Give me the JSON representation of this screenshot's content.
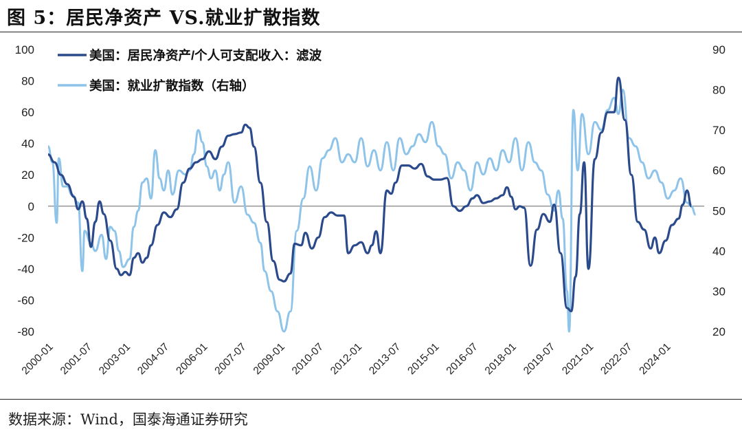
{
  "figure": {
    "title": "图 5：居民净资产 VS.就业扩散指数",
    "source": "数据来源：Wind，国泰海通证券研究"
  },
  "chart_data": {
    "type": "line",
    "x_ticks": [
      "2000-01",
      "2001-07",
      "2003-01",
      "2004-07",
      "2006-01",
      "2007-07",
      "2009-01",
      "2010-07",
      "2012-01",
      "2013-07",
      "2015-01",
      "2016-07",
      "2018-01",
      "2019-07",
      "2021-01",
      "2022-07",
      "2024-01"
    ],
    "x_range": [
      "2000-01",
      "2025-07"
    ],
    "ylim_left": [
      -80,
      100
    ],
    "yticks_left": [
      "100",
      "80",
      "60",
      "40",
      "20",
      "0",
      "-20",
      "-40",
      "-60",
      "-80"
    ],
    "ylim_right": [
      20,
      90
    ],
    "yticks_right": [
      "90",
      "80",
      "70",
      "60",
      "50",
      "40",
      "30",
      "20"
    ],
    "grid": false,
    "legend_position": "top-left",
    "colors": {
      "series1": "#2b4a8b",
      "series2": "#8ec3ea"
    },
    "series": [
      {
        "name": "美国：居民净资产/个人可支配收入：滤波",
        "axis": "left",
        "points": [
          [
            "2000-01",
            33
          ],
          [
            "2000-04",
            28
          ],
          [
            "2000-07",
            20
          ],
          [
            "2000-10",
            14
          ],
          [
            "2001-01",
            6
          ],
          [
            "2001-03",
            -2
          ],
          [
            "2001-05",
            3
          ],
          [
            "2001-07",
            -8
          ],
          [
            "2001-09",
            -26
          ],
          [
            "2001-11",
            -10
          ],
          [
            "2002-01",
            3
          ],
          [
            "2002-03",
            -5
          ],
          [
            "2002-06",
            -22
          ],
          [
            "2002-09",
            -40
          ],
          [
            "2002-11",
            -44
          ],
          [
            "2003-01",
            -42
          ],
          [
            "2003-03",
            -44
          ],
          [
            "2003-05",
            -33
          ],
          [
            "2003-07",
            -30
          ],
          [
            "2003-09",
            -36
          ],
          [
            "2003-11",
            -33
          ],
          [
            "2004-01",
            -25
          ],
          [
            "2004-04",
            -12
          ],
          [
            "2004-07",
            -4
          ],
          [
            "2004-10",
            -7
          ],
          [
            "2005-01",
            -2
          ],
          [
            "2005-04",
            15
          ],
          [
            "2005-07",
            24
          ],
          [
            "2005-10",
            28
          ],
          [
            "2006-01",
            30
          ],
          [
            "2006-04",
            35
          ],
          [
            "2006-07",
            30
          ],
          [
            "2006-10",
            38
          ],
          [
            "2007-01",
            45
          ],
          [
            "2007-04",
            46
          ],
          [
            "2007-07",
            47
          ],
          [
            "2007-09",
            52
          ],
          [
            "2007-11",
            50
          ],
          [
            "2008-01",
            38
          ],
          [
            "2008-04",
            15
          ],
          [
            "2008-07",
            -10
          ],
          [
            "2008-10",
            -35
          ],
          [
            "2009-01",
            -47
          ],
          [
            "2009-03",
            -48
          ],
          [
            "2009-06",
            -43
          ],
          [
            "2009-08",
            -24
          ],
          [
            "2009-11",
            -25
          ],
          [
            "2010-01",
            -17
          ],
          [
            "2010-04",
            -27
          ],
          [
            "2010-07",
            -20
          ],
          [
            "2010-10",
            -7
          ],
          [
            "2011-01",
            -4
          ],
          [
            "2011-04",
            -6
          ],
          [
            "2011-07",
            -6
          ],
          [
            "2011-09",
            -30
          ],
          [
            "2011-12",
            -25
          ],
          [
            "2012-03",
            -23
          ],
          [
            "2012-06",
            -30
          ],
          [
            "2012-08",
            -25
          ],
          [
            "2012-10",
            -16
          ],
          [
            "2012-12",
            -30
          ],
          [
            "2013-03",
            10
          ],
          [
            "2013-05",
            8
          ],
          [
            "2013-07",
            15
          ],
          [
            "2013-10",
            26
          ],
          [
            "2014-01",
            26
          ],
          [
            "2014-04",
            24
          ],
          [
            "2014-07",
            27
          ],
          [
            "2014-10",
            19
          ],
          [
            "2015-01",
            17
          ],
          [
            "2015-04",
            17
          ],
          [
            "2015-07",
            18
          ],
          [
            "2015-10",
            0
          ],
          [
            "2016-01",
            -3
          ],
          [
            "2016-04",
            0
          ],
          [
            "2016-07",
            5
          ],
          [
            "2016-09",
            7
          ],
          [
            "2016-12",
            2
          ],
          [
            "2017-03",
            3
          ],
          [
            "2017-06",
            5
          ],
          [
            "2017-09",
            7
          ],
          [
            "2017-11",
            12
          ],
          [
            "2018-01",
            6
          ],
          [
            "2018-03",
            -2
          ],
          [
            "2018-05",
            0
          ],
          [
            "2018-07",
            -1
          ],
          [
            "2018-10",
            -38
          ],
          [
            "2019-01",
            -15
          ],
          [
            "2019-04",
            -5
          ],
          [
            "2019-07",
            -10
          ],
          [
            "2019-09",
            1
          ],
          [
            "2019-12",
            -30
          ],
          [
            "2020-03",
            -65
          ],
          [
            "2020-05",
            -67
          ],
          [
            "2020-07",
            -45
          ],
          [
            "2020-09",
            -5
          ],
          [
            "2020-11",
            28
          ],
          [
            "2021-01",
            -40
          ],
          [
            "2021-04",
            30
          ],
          [
            "2021-07",
            47
          ],
          [
            "2021-10",
            60
          ],
          [
            "2022-01",
            60
          ],
          [
            "2022-03",
            82
          ],
          [
            "2022-06",
            55
          ],
          [
            "2022-09",
            20
          ],
          [
            "2022-12",
            -10
          ],
          [
            "2023-03",
            -15
          ],
          [
            "2023-06",
            -27
          ],
          [
            "2023-08",
            -20
          ],
          [
            "2023-10",
            -30
          ],
          [
            "2024-01",
            -22
          ],
          [
            "2024-04",
            -12
          ],
          [
            "2024-07",
            -8
          ],
          [
            "2024-09",
            1
          ],
          [
            "2024-11",
            10
          ],
          [
            "2025-01",
            0
          ]
        ]
      },
      {
        "name": "美国：就业扩散指数（右轴）",
        "axis": "right",
        "points": [
          [
            "2000-01",
            66
          ],
          [
            "2000-03",
            62
          ],
          [
            "2000-05",
            47
          ],
          [
            "2000-06",
            63
          ],
          [
            "2000-08",
            56
          ],
          [
            "2000-10",
            56
          ],
          [
            "2000-12",
            54
          ],
          [
            "2001-03",
            52
          ],
          [
            "2001-05",
            35
          ],
          [
            "2001-06",
            45
          ],
          [
            "2001-09",
            42
          ],
          [
            "2001-11",
            40
          ],
          [
            "2002-02",
            44
          ],
          [
            "2002-04",
            38
          ],
          [
            "2002-06",
            46
          ],
          [
            "2002-08",
            45
          ],
          [
            "2002-10",
            40
          ],
          [
            "2002-12",
            36
          ],
          [
            "2003-03",
            38
          ],
          [
            "2003-05",
            46
          ],
          [
            "2003-07",
            50
          ],
          [
            "2003-09",
            57
          ],
          [
            "2003-11",
            58
          ],
          [
            "2004-01",
            53
          ],
          [
            "2004-03",
            65
          ],
          [
            "2004-05",
            58
          ],
          [
            "2004-07",
            55
          ],
          [
            "2004-09",
            60
          ],
          [
            "2004-11",
            54
          ],
          [
            "2005-02",
            60
          ],
          [
            "2005-05",
            59
          ],
          [
            "2005-07",
            60
          ],
          [
            "2005-09",
            64
          ],
          [
            "2005-11",
            70
          ],
          [
            "2006-01",
            67
          ],
          [
            "2006-03",
            61
          ],
          [
            "2006-05",
            58
          ],
          [
            "2006-07",
            60
          ],
          [
            "2006-09",
            55
          ],
          [
            "2006-11",
            59
          ],
          [
            "2007-01",
            62
          ],
          [
            "2007-04",
            52
          ],
          [
            "2007-07",
            56
          ],
          [
            "2007-10",
            49
          ],
          [
            "2008-01",
            47
          ],
          [
            "2008-04",
            42
          ],
          [
            "2008-06",
            35
          ],
          [
            "2008-09",
            30
          ],
          [
            "2008-12",
            25
          ],
          [
            "2009-03",
            20
          ],
          [
            "2009-06",
            25
          ],
          [
            "2009-09",
            45
          ],
          [
            "2009-12",
            53
          ],
          [
            "2010-03",
            61
          ],
          [
            "2010-06",
            55
          ],
          [
            "2010-09",
            63
          ],
          [
            "2010-12",
            65
          ],
          [
            "2011-03",
            68
          ],
          [
            "2011-06",
            62
          ],
          [
            "2011-09",
            64
          ],
          [
            "2011-12",
            62
          ],
          [
            "2012-03",
            68
          ],
          [
            "2012-06",
            61
          ],
          [
            "2012-09",
            65
          ],
          [
            "2012-12",
            60
          ],
          [
            "2013-03",
            67
          ],
          [
            "2013-06",
            60
          ],
          [
            "2013-09",
            68
          ],
          [
            "2013-12",
            64
          ],
          [
            "2014-03",
            66
          ],
          [
            "2014-06",
            69
          ],
          [
            "2014-09",
            67
          ],
          [
            "2014-12",
            72
          ],
          [
            "2015-03",
            66
          ],
          [
            "2015-06",
            64
          ],
          [
            "2015-09",
            58
          ],
          [
            "2015-12",
            62
          ],
          [
            "2016-03",
            60
          ],
          [
            "2016-06",
            55
          ],
          [
            "2016-09",
            62
          ],
          [
            "2016-12",
            59
          ],
          [
            "2017-03",
            63
          ],
          [
            "2017-06",
            60
          ],
          [
            "2017-09",
            65
          ],
          [
            "2017-12",
            62
          ],
          [
            "2018-03",
            68
          ],
          [
            "2018-06",
            60
          ],
          [
            "2018-09",
            67
          ],
          [
            "2018-12",
            62
          ],
          [
            "2019-03",
            60
          ],
          [
            "2019-06",
            54
          ],
          [
            "2019-09",
            50
          ],
          [
            "2019-11",
            55
          ],
          [
            "2020-01",
            48
          ],
          [
            "2020-03",
            30
          ],
          [
            "2020-04",
            20
          ],
          [
            "2020-06",
            75
          ],
          [
            "2020-08",
            60
          ],
          [
            "2020-10",
            74
          ],
          [
            "2021-01",
            64
          ],
          [
            "2021-04",
            72
          ],
          [
            "2021-07",
            70
          ],
          [
            "2021-10",
            75
          ],
          [
            "2022-01",
            78
          ],
          [
            "2022-03",
            74
          ],
          [
            "2022-05",
            80
          ],
          [
            "2022-08",
            68
          ],
          [
            "2022-11",
            66
          ],
          [
            "2023-02",
            62
          ],
          [
            "2023-05",
            58
          ],
          [
            "2023-08",
            60
          ],
          [
            "2023-11",
            57
          ],
          [
            "2024-02",
            53
          ],
          [
            "2024-05",
            55
          ],
          [
            "2024-08",
            58
          ],
          [
            "2024-11",
            52
          ],
          [
            "2025-01",
            51
          ],
          [
            "2025-03",
            49
          ]
        ]
      }
    ]
  }
}
